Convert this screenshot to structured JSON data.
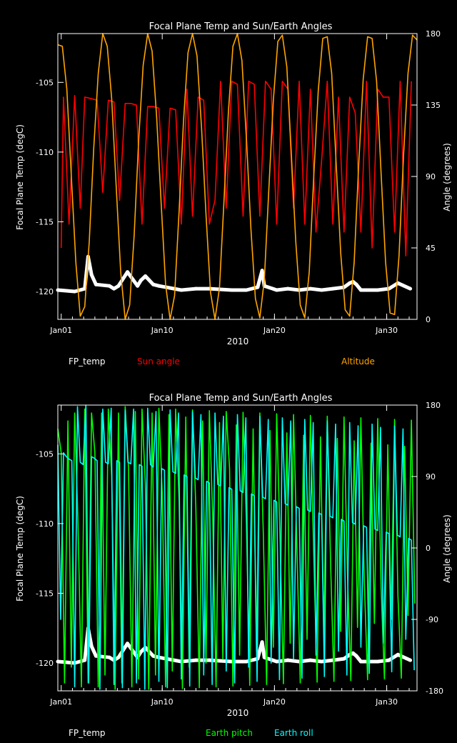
{
  "chart_data": [
    {
      "type": "line",
      "title": "Focal Plane Temp and Sun/Earth Angles",
      "xlabel": "2010",
      "ylabel_left": "Focal Plane Temp (degC)",
      "ylabel_right": "Angle (degrees)",
      "xlim": [
        0,
        32
      ],
      "ylim_left": [
        -122,
        -101.5
      ],
      "ylim_right": [
        0,
        180
      ],
      "x_ticks": [
        {
          "value": 0.3,
          "label": "Jan01"
        },
        {
          "value": 9.3,
          "label": "Jan10"
        },
        {
          "value": 19.3,
          "label": "Jan20"
        },
        {
          "value": 29.3,
          "label": "Jan30"
        }
      ],
      "y_ticks_left": [
        "-105",
        "-110",
        "-115",
        "-120"
      ],
      "y_ticks_right": [
        "180",
        "135",
        "90",
        "45",
        "0"
      ],
      "series": [
        {
          "name": "FP_temp",
          "axis": "left",
          "color": "#ffffff",
          "x": [
            0,
            1.5,
            2.4,
            2.7,
            3,
            3.4,
            4.6,
            5.0,
            5.4,
            6.2,
            7.1,
            7.4,
            7.8,
            8.5,
            9.0,
            11.0,
            12.3,
            13.5,
            15.5,
            16.8,
            17.8,
            18.2,
            18.4,
            19.5,
            20.5,
            21.5,
            22.5,
            23.5,
            24.5,
            25.5,
            26,
            26.3,
            26.6,
            27,
            28.5,
            29.5,
            30.3,
            31.4
          ],
          "y": [
            -119.9,
            -120.0,
            -119.8,
            -117.5,
            -118.8,
            -119.5,
            -119.6,
            -119.8,
            -119.6,
            -118.6,
            -119.6,
            -119.2,
            -118.9,
            -119.5,
            -119.6,
            -119.9,
            -119.8,
            -119.8,
            -119.9,
            -119.9,
            -119.7,
            -118.5,
            -119.6,
            -119.9,
            -119.8,
            -119.9,
            -119.8,
            -119.9,
            -119.8,
            -119.7,
            -119.4,
            -119.3,
            -119.5,
            -119.9,
            -119.9,
            -119.8,
            -119.4,
            -119.8
          ]
        },
        {
          "name": "Sun angle",
          "axis": "right",
          "color": "#ff0000",
          "x": [
            0.3,
            0.5,
            1.0,
            1.5,
            2.0,
            2.4,
            3.0,
            3.5,
            4.0,
            4.5,
            5.0,
            5.5,
            6.0,
            6.5,
            7.0,
            7.5,
            8.0,
            8.5,
            9.0,
            9.5,
            10.0,
            10.5,
            11.0,
            11.5,
            12.0,
            12.5,
            13.0,
            13.5,
            14.0,
            14.5,
            15.0,
            15.5,
            16.0,
            16.5,
            17.0,
            17.5,
            18.0,
            18.5,
            19.0,
            19.5,
            20.0,
            20.5,
            21.0,
            21.5,
            22.0,
            22.5,
            23.0,
            23.5,
            24.0,
            24.5,
            25.0,
            25.5,
            26.0,
            26.5,
            27.0,
            27.5,
            28.0,
            28.5,
            29.0,
            29.5,
            30.0,
            30.5,
            31.0,
            31.5
          ],
          "y": [
            45,
            140,
            60,
            141,
            70,
            140,
            139,
            138,
            80,
            138,
            137,
            75,
            136,
            136,
            135,
            60,
            134,
            134,
            133,
            70,
            133,
            132,
            60,
            145,
            65,
            140,
            138,
            60,
            75,
            150,
            70,
            150,
            148,
            65,
            150,
            148,
            65,
            150,
            145,
            60,
            150,
            145,
            70,
            150,
            60,
            145,
            55,
            100,
            150,
            60,
            140,
            55,
            140,
            130,
            55,
            150,
            45,
            145,
            140,
            140,
            55,
            150,
            40,
            150
          ]
        },
        {
          "name": "Altitude",
          "axis": "right",
          "color": "#ffa500",
          "x": [
            0.0,
            0.4,
            0.8,
            1.2,
            1.6,
            2.0,
            2.4,
            2.8,
            3.2,
            3.6,
            4.0,
            4.4,
            4.8,
            5.2,
            5.6,
            6.0,
            6.4,
            6.8,
            7.2,
            7.6,
            8.0,
            8.4,
            8.8,
            9.2,
            9.6,
            10.0,
            10.4,
            10.8,
            11.2,
            11.6,
            12.0,
            12.4,
            12.8,
            13.2,
            13.6,
            14.0,
            14.4,
            14.8,
            15.2,
            15.6,
            16.0,
            16.4,
            16.8,
            17.2,
            17.6,
            18.0,
            18.4,
            18.8,
            19.2,
            19.6,
            20.0,
            20.4,
            20.8,
            21.2,
            21.6,
            22.0,
            22.4,
            22.8,
            23.2,
            23.6,
            24.0,
            24.4,
            24.8,
            25.2,
            25.6,
            26.0,
            26.4,
            26.8,
            27.2,
            27.6,
            28.0,
            28.4,
            28.8,
            29.2,
            29.6,
            30.0,
            30.4,
            30.8,
            31.2,
            31.6,
            32.0
          ],
          "y": [
            173,
            172,
            145,
            90,
            36,
            2,
            8,
            49,
            108,
            155,
            180,
            172,
            139,
            84,
            30,
            0,
            9,
            53,
            113,
            160,
            180,
            169,
            128,
            74,
            22,
            0,
            15,
            68,
            125,
            168,
            180,
            166,
            121,
            66,
            17,
            0,
            20,
            74,
            131,
            172,
            180,
            163,
            114,
            57,
            13,
            1,
            25,
            82,
            138,
            175,
            179,
            159,
            105,
            49,
            9,
            1,
            30,
            90,
            144,
            177,
            178,
            155,
            98,
            42,
            6,
            2,
            36,
            97,
            151,
            178,
            177,
            150,
            92,
            36,
            4,
            3,
            40,
            103,
            155,
            179,
            176
          ]
        }
      ],
      "legend": [
        "FP_temp",
        "Sun angle",
        "Altitude"
      ]
    },
    {
      "type": "line",
      "title": "Focal Plane Temp and Sun/Earth Angles",
      "xlabel": "2010",
      "ylabel_left": "Focal Plane Temp (degC)",
      "ylabel_right": "Angle (degrees)",
      "xlim": [
        0,
        32
      ],
      "ylim_left": [
        -122,
        -101.5
      ],
      "ylim_right": [
        -180,
        180
      ],
      "x_ticks": [
        {
          "value": 0.3,
          "label": "Jan01"
        },
        {
          "value": 9.3,
          "label": "Jan10"
        },
        {
          "value": 19.3,
          "label": "Jan20"
        },
        {
          "value": 29.3,
          "label": "Jan30"
        }
      ],
      "y_ticks_left": [
        "-105",
        "-110",
        "-115",
        "-120"
      ],
      "y_ticks_right": [
        "180",
        "90",
        "0",
        "-90",
        "-180"
      ],
      "series": [
        {
          "name": "FP_temp",
          "axis": "left",
          "color": "#ffffff",
          "x": [
            0,
            1.5,
            2.4,
            2.7,
            3,
            3.4,
            4.6,
            5.0,
            5.4,
            6.2,
            7.1,
            7.4,
            7.8,
            8.5,
            9.0,
            11.0,
            12.3,
            13.5,
            15.5,
            16.8,
            17.8,
            18.2,
            18.4,
            19.5,
            20.5,
            21.5,
            22.5,
            23.5,
            24.5,
            25.5,
            26,
            26.3,
            26.6,
            27,
            28.5,
            29.5,
            30.3,
            31.4
          ],
          "y": [
            -119.9,
            -120.0,
            -119.8,
            -117.5,
            -118.8,
            -119.5,
            -119.6,
            -119.8,
            -119.6,
            -118.6,
            -119.6,
            -119.2,
            -118.9,
            -119.5,
            -119.6,
            -119.9,
            -119.8,
            -119.8,
            -119.9,
            -119.9,
            -119.7,
            -118.5,
            -119.6,
            -119.9,
            -119.8,
            -119.9,
            -119.8,
            -119.9,
            -119.8,
            -119.7,
            -119.4,
            -119.3,
            -119.5,
            -119.9,
            -119.9,
            -119.8,
            -119.4,
            -119.8
          ]
        },
        {
          "name": "Earth pitch",
          "axis": "right",
          "color": "#00ff00",
          "x": [
            0.0,
            0.3,
            0.6,
            0.9,
            1.2,
            1.5,
            1.8,
            2.1,
            2.4,
            2.7,
            3.0,
            3.3,
            3.6,
            3.9,
            4.2,
            4.5,
            4.8,
            5.1,
            5.4,
            5.7,
            6.0,
            6.3,
            6.6,
            6.9,
            7.2,
            7.5,
            7.8,
            8.1,
            8.4,
            8.7,
            9.0,
            9.3,
            9.6,
            9.9,
            10.2,
            10.5,
            10.8,
            11.1,
            11.4,
            11.7,
            12.0,
            12.3,
            12.6,
            12.9,
            13.2,
            13.5,
            13.8,
            14.1,
            14.4,
            14.7,
            15.0,
            15.3,
            15.6,
            15.9,
            16.2,
            16.5,
            16.8,
            17.1,
            17.4,
            17.7,
            18.0,
            18.3,
            18.6,
            18.9,
            19.2,
            19.5,
            19.8,
            20.1,
            20.4,
            20.7,
            21.0,
            21.3,
            21.6,
            21.9,
            22.2,
            22.5,
            22.8,
            23.1,
            23.4,
            23.7,
            24.0,
            24.3,
            24.6,
            24.9,
            25.2,
            25.5,
            25.8,
            26.1,
            26.4,
            26.7,
            27.0,
            27.3,
            27.6,
            27.9,
            28.2,
            28.5,
            28.8,
            29.1,
            29.4,
            29.7,
            30.0,
            30.3,
            30.6,
            30.9,
            31.2,
            31.5,
            31.8
          ],
          "y": [
            150,
            120,
            -170,
            160,
            -150,
            170,
            30,
            -175,
            175,
            -170,
            170,
            120,
            -175,
            170,
            -160,
            175,
            90,
            -178,
            170,
            -170,
            178,
            100,
            -175,
            172,
            -165,
            175,
            80,
            -178,
            170,
            -160,
            176,
            70,
            -175,
            168,
            -155,
            175,
            60,
            -177,
            165,
            -150,
            174,
            50,
            -176,
            160,
            -145,
            173,
            40,
            -175,
            158,
            -140,
            172,
            100,
            -174,
            155,
            -135,
            171,
            30,
            -173,
            150,
            -130,
            170,
            20,
            -172,
            148,
            -125,
            169,
            10,
            -171,
            145,
            -120,
            168,
            0,
            -170,
            142,
            -115,
            167,
            -10,
            -169,
            140,
            -110,
            166,
            -20,
            -168,
            138,
            -105,
            165,
            -30,
            -167,
            135,
            -100,
            164,
            -40,
            -166,
            132,
            -95,
            163,
            -50,
            -165,
            130,
            -90,
            162,
            -60,
            -164,
            128,
            -85,
            161,
            -70
          ]
        },
        {
          "name": "Earth roll",
          "axis": "right",
          "color": "#00ffff",
          "x": [
            0.0,
            0.25,
            0.5,
            0.75,
            1.0,
            1.25,
            1.5,
            1.75,
            2.0,
            2.25,
            2.5,
            2.75,
            3.0,
            3.25,
            3.5,
            3.75,
            4.0,
            4.25,
            4.5,
            4.75,
            5.0,
            5.25,
            5.5,
            5.75,
            6.0,
            6.25,
            6.5,
            6.75,
            7.0,
            7.25,
            7.5,
            7.75,
            8.0,
            8.25,
            8.5,
            8.75,
            9.0,
            9.25,
            9.5,
            9.75,
            10.0,
            10.25,
            10.5,
            10.75,
            11.0,
            11.25,
            11.5,
            11.75,
            12.0,
            12.25,
            12.5,
            12.75,
            13.0,
            13.25,
            13.5,
            13.75,
            14.0,
            14.25,
            14.5,
            14.75,
            15.0,
            15.25,
            15.5,
            15.75,
            16.0,
            16.25,
            16.5,
            16.75,
            17.0,
            17.25,
            17.5,
            17.75,
            18.0,
            18.25,
            18.5,
            18.75,
            19.0,
            19.25,
            19.5,
            19.75,
            20.0,
            20.25,
            20.5,
            20.75,
            21.0,
            21.25,
            21.5,
            21.75,
            22.0,
            22.25,
            22.5,
            22.75,
            23.0,
            23.25,
            23.5,
            23.75,
            24.0,
            24.25,
            24.5,
            24.75,
            25.0,
            25.25,
            25.5,
            25.75,
            26.0,
            26.25,
            26.5,
            26.75,
            27.0,
            27.25,
            27.5,
            27.75,
            28.0,
            28.25,
            28.5,
            28.75,
            29.0,
            29.25,
            29.5,
            29.75,
            30.0,
            30.25,
            30.5,
            30.75,
            31.0,
            31.25,
            31.5,
            31.75
          ],
          "y": [
            130,
            -90,
            120,
            115,
            112,
            110,
            -175,
            178,
            108,
            105,
            180,
            -170,
            115,
            113,
            110,
            -178,
            175,
            108,
            106,
            176,
            -172,
            110,
            108,
            -176,
            174,
            108,
            106,
            175,
            -170,
            105,
            103,
            -178,
            176,
            105,
            102,
            172,
            -168,
            100,
            98,
            -176,
            174,
            96,
            94,
            170,
            -165,
            92,
            90,
            -174,
            172,
            88,
            86,
            168,
            -160,
            84,
            82,
            -172,
            170,
            80,
            78,
            166,
            -155,
            76,
            74,
            -170,
            168,
            72,
            70,
            164,
            -150,
            68,
            66,
            -168,
            166,
            64,
            62,
            162,
            -145,
            60,
            58,
            -166,
            164,
            56,
            54,
            160,
            -140,
            52,
            50,
            -164,
            162,
            48,
            46,
            158,
            -135,
            44,
            42,
            -162,
            160,
            40,
            38,
            156,
            -130,
            36,
            34,
            -160,
            158,
            32,
            30,
            154,
            -125,
            28,
            26,
            -158,
            156,
            24,
            22,
            152,
            -120,
            20,
            18,
            -156,
            154,
            16,
            14,
            150,
            -115,
            12,
            10,
            -154
          ]
        }
      ],
      "legend": [
        "FP_temp",
        "Earth pitch",
        "Earth roll"
      ]
    }
  ]
}
